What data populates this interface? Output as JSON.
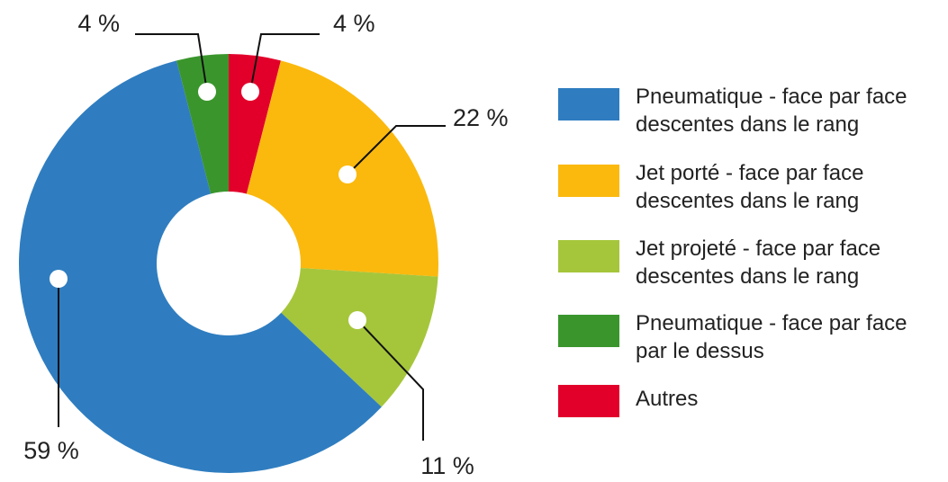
{
  "chart_data": {
    "type": "donut",
    "categories": [
      "Pneumatique - face par face\ndescentes dans le rang",
      "Jet porté - face par face\ndescentes dans le rang",
      "Jet projeté - face par face\ndescentes dans le rang",
      "Pneumatique - face par face\npar le dessus",
      "Autres"
    ],
    "values": [
      59,
      22,
      11,
      4,
      4
    ],
    "value_labels": [
      "59 %",
      "22 %",
      "11 %",
      "4 %",
      "4 %"
    ],
    "colors": [
      "#2f7dc0",
      "#fbb90e",
      "#a5c63b",
      "#3a962c",
      "#e2002b"
    ]
  }
}
